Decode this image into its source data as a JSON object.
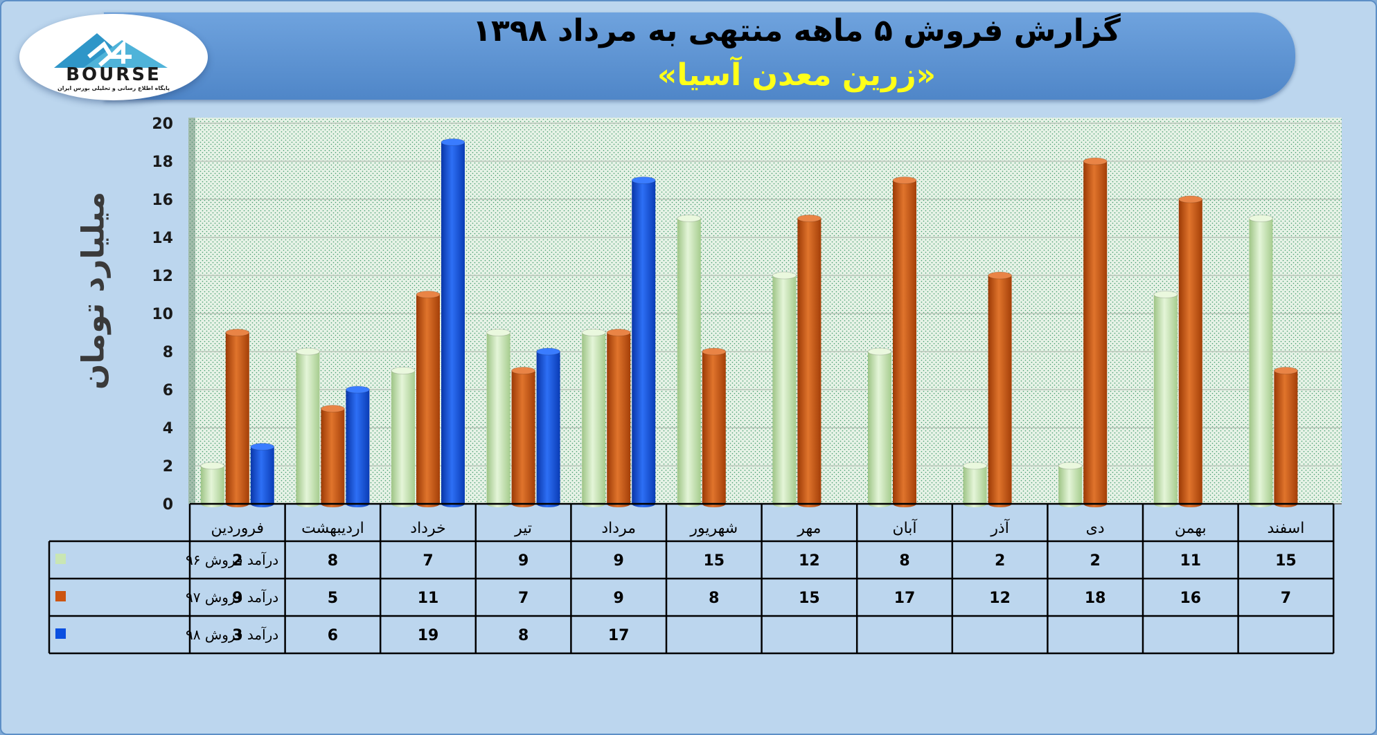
{
  "header": {
    "title": "گزارش فروش ۵ ماهه منتهی به مرداد ۱۳۹۸",
    "subtitle": "«زرین معدن آسیا»"
  },
  "logo": {
    "text": "BOURSE",
    "number": "24",
    "tagline": "پایگاه اطلاع رسانی و تحلیلی بورس ایران",
    "icon": "bourse24-logo"
  },
  "chart_data": {
    "type": "bar",
    "ylabel": "میلیارد تومان",
    "ylim": [
      0,
      20
    ],
    "yticks": [
      0,
      2,
      4,
      6,
      8,
      10,
      12,
      14,
      16,
      18,
      20
    ],
    "categories": [
      "فروردین",
      "اردیبهشت",
      "خرداد",
      "تیر",
      "مرداد",
      "شهریور",
      "مهر",
      "آبان",
      "آذر",
      "دی",
      "بهمن",
      "اسفند"
    ],
    "series": [
      {
        "name": "درآمد فروش ۹۶",
        "color": "#c9e6b4",
        "values": [
          2,
          8,
          7,
          9,
          9,
          15,
          12,
          8,
          2,
          2,
          11,
          15
        ]
      },
      {
        "name": "درآمد فروش ۹۷",
        "color": "#cc5511",
        "values": [
          9,
          5,
          11,
          7,
          9,
          8,
          15,
          17,
          12,
          18,
          16,
          7
        ]
      },
      {
        "name": "درآمد فروش ۹۸",
        "color": "#0a4fe0",
        "values": [
          3,
          6,
          19,
          8,
          17,
          null,
          null,
          null,
          null,
          null,
          null,
          null
        ]
      }
    ],
    "grid": true,
    "legend": "data-table"
  }
}
